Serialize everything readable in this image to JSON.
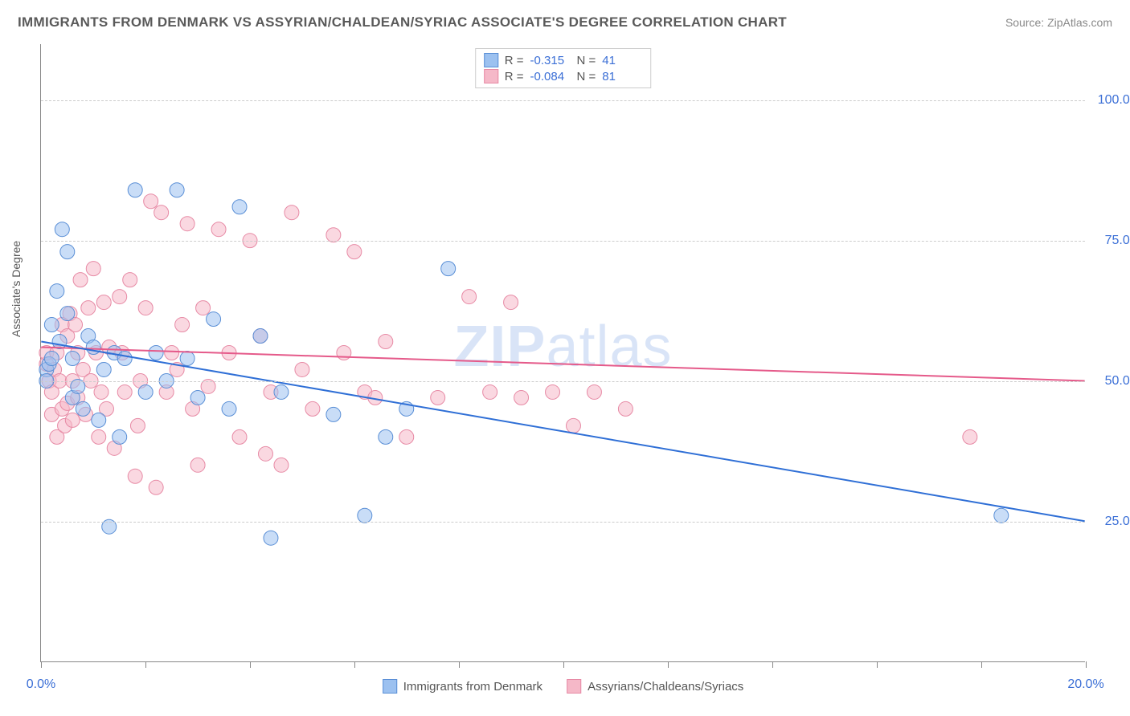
{
  "title": "IMMIGRANTS FROM DENMARK VS ASSYRIAN/CHALDEAN/SYRIAC ASSOCIATE'S DEGREE CORRELATION CHART",
  "source": "Source: ZipAtlas.com",
  "watermark": "ZIPatlas",
  "y_axis_label": "Associate's Degree",
  "chart": {
    "type": "scatter",
    "xlim": [
      0,
      20
    ],
    "ylim": [
      0,
      110
    ],
    "x_ticks": [
      0,
      2,
      4,
      6,
      8,
      10,
      12,
      14,
      16,
      18,
      20
    ],
    "y_gridlines": [
      25,
      50,
      75,
      100
    ],
    "x_tick_labels": {
      "0": "0.0%",
      "20": "20.0%"
    },
    "y_tick_labels": {
      "25": "25.0%",
      "50": "50.0%",
      "75": "75.0%",
      "100": "100.0%"
    },
    "background_color": "#ffffff",
    "grid_color": "#cccccc",
    "axis_color": "#888888",
    "tick_label_color": "#3b6fd6",
    "marker_radius": 9,
    "marker_opacity": 0.55,
    "line_width": 2
  },
  "series": {
    "denmark": {
      "label": "Immigrants from Denmark",
      "color_fill": "#9cc1f0",
      "color_stroke": "#5a8fd6",
      "r_value": "-0.315",
      "n_value": "41",
      "regression": {
        "x1": 0,
        "y1": 57,
        "x2": 20,
        "y2": 25,
        "color": "#2f6fd6"
      },
      "points": [
        [
          0.1,
          52
        ],
        [
          0.1,
          50
        ],
        [
          0.15,
          53
        ],
        [
          0.2,
          54
        ],
        [
          0.2,
          60
        ],
        [
          0.3,
          66
        ],
        [
          0.35,
          57
        ],
        [
          0.4,
          77
        ],
        [
          0.5,
          62
        ],
        [
          0.5,
          73
        ],
        [
          0.6,
          54
        ],
        [
          0.6,
          47
        ],
        [
          0.7,
          49
        ],
        [
          0.8,
          45
        ],
        [
          0.9,
          58
        ],
        [
          1.0,
          56
        ],
        [
          1.1,
          43
        ],
        [
          1.2,
          52
        ],
        [
          1.3,
          24
        ],
        [
          1.4,
          55
        ],
        [
          1.5,
          40
        ],
        [
          1.6,
          54
        ],
        [
          1.8,
          84
        ],
        [
          2.0,
          48
        ],
        [
          2.2,
          55
        ],
        [
          2.4,
          50
        ],
        [
          2.6,
          84
        ],
        [
          2.8,
          54
        ],
        [
          3.0,
          47
        ],
        [
          3.3,
          61
        ],
        [
          3.6,
          45
        ],
        [
          3.8,
          81
        ],
        [
          4.2,
          58
        ],
        [
          4.4,
          22
        ],
        [
          4.6,
          48
        ],
        [
          5.6,
          44
        ],
        [
          6.2,
          26
        ],
        [
          6.6,
          40
        ],
        [
          7.0,
          45
        ],
        [
          7.8,
          70
        ],
        [
          18.4,
          26
        ]
      ]
    },
    "assyrian": {
      "label": "Assyrians/Chaldeans/Syriacs",
      "color_fill": "#f5b8c8",
      "color_stroke": "#e78aa5",
      "r_value": "-0.084",
      "n_value": "81",
      "regression": {
        "x1": 0,
        "y1": 56,
        "x2": 20,
        "y2": 50,
        "color": "#e55a8a"
      },
      "points": [
        [
          0.1,
          53
        ],
        [
          0.1,
          55
        ],
        [
          0.15,
          50
        ],
        [
          0.2,
          44
        ],
        [
          0.2,
          48
        ],
        [
          0.25,
          52
        ],
        [
          0.3,
          40
        ],
        [
          0.3,
          55
        ],
        [
          0.35,
          50
        ],
        [
          0.4,
          45
        ],
        [
          0.4,
          60
        ],
        [
          0.45,
          42
        ],
        [
          0.5,
          46
        ],
        [
          0.5,
          58
        ],
        [
          0.55,
          62
        ],
        [
          0.6,
          50
        ],
        [
          0.6,
          43
        ],
        [
          0.65,
          60
        ],
        [
          0.7,
          55
        ],
        [
          0.7,
          47
        ],
        [
          0.75,
          68
        ],
        [
          0.8,
          52
        ],
        [
          0.85,
          44
        ],
        [
          0.9,
          63
        ],
        [
          0.95,
          50
        ],
        [
          1.0,
          70
        ],
        [
          1.05,
          55
        ],
        [
          1.1,
          40
        ],
        [
          1.15,
          48
        ],
        [
          1.2,
          64
        ],
        [
          1.25,
          45
        ],
        [
          1.3,
          56
        ],
        [
          1.4,
          38
        ],
        [
          1.5,
          65
        ],
        [
          1.55,
          55
        ],
        [
          1.6,
          48
        ],
        [
          1.7,
          68
        ],
        [
          1.8,
          33
        ],
        [
          1.85,
          42
        ],
        [
          1.9,
          50
        ],
        [
          2.0,
          63
        ],
        [
          2.1,
          82
        ],
        [
          2.2,
          31
        ],
        [
          2.3,
          80
        ],
        [
          2.4,
          48
        ],
        [
          2.5,
          55
        ],
        [
          2.6,
          52
        ],
        [
          2.7,
          60
        ],
        [
          2.8,
          78
        ],
        [
          2.9,
          45
        ],
        [
          3.0,
          35
        ],
        [
          3.1,
          63
        ],
        [
          3.2,
          49
        ],
        [
          3.4,
          77
        ],
        [
          3.6,
          55
        ],
        [
          3.8,
          40
        ],
        [
          4.0,
          75
        ],
        [
          4.2,
          58
        ],
        [
          4.3,
          37
        ],
        [
          4.4,
          48
        ],
        [
          4.6,
          35
        ],
        [
          4.8,
          80
        ],
        [
          5.0,
          52
        ],
        [
          5.2,
          45
        ],
        [
          5.6,
          76
        ],
        [
          5.8,
          55
        ],
        [
          6.0,
          73
        ],
        [
          6.2,
          48
        ],
        [
          6.4,
          47
        ],
        [
          6.6,
          57
        ],
        [
          7.0,
          40
        ],
        [
          7.6,
          47
        ],
        [
          8.2,
          65
        ],
        [
          8.6,
          48
        ],
        [
          9.0,
          64
        ],
        [
          9.2,
          47
        ],
        [
          9.8,
          48
        ],
        [
          10.2,
          42
        ],
        [
          10.6,
          48
        ],
        [
          11.2,
          45
        ],
        [
          17.8,
          40
        ]
      ]
    }
  },
  "stats_box": {
    "r_label": "R =",
    "n_label": "N ="
  }
}
